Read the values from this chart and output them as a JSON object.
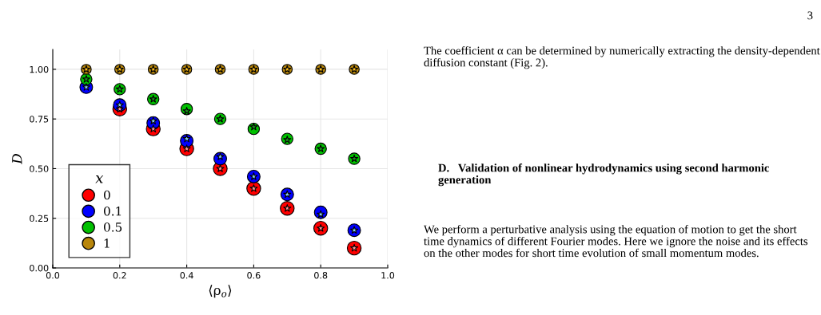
{
  "chart_data": {
    "type": "scatter",
    "xlabel": "⟨ρ$_{o}$⟩",
    "ylabel": "D",
    "legend_title": "x",
    "xlim": [
      0,
      1.0
    ],
    "ylim": [
      0,
      1.1
    ],
    "xticks": [
      {
        "value": 0,
        "label": "0.0"
      },
      0.2,
      0.4,
      0.6,
      0.8,
      {
        "value": 1.0,
        "label": "1.0"
      }
    ],
    "yticks": [
      {
        "value": 0,
        "label": "0.00"
      },
      0.25,
      {
        "value": 0.5,
        "label": "0.50"
      },
      0.75,
      {
        "value": 1.0,
        "label": "1.00"
      }
    ],
    "grid": true,
    "legend": "bottom left",
    "x": [
      0.1,
      0.2,
      0.3,
      0.4,
      0.5,
      0.6,
      0.7,
      0.8,
      0.9
    ],
    "series": [
      {
        "name": "0",
        "color": "#ff0000",
        "marker": "circle",
        "values": [
          null,
          0.8,
          0.7,
          0.6,
          0.5,
          0.4,
          0.3,
          0.2,
          0.1
        ]
      },
      {
        "name": "0.1",
        "color": "#0000ff",
        "marker": "circle",
        "values": [
          0.91,
          0.82,
          0.73,
          0.64,
          0.55,
          0.46,
          0.37,
          0.28,
          0.19
        ]
      },
      {
        "name": "0.5",
        "color": "#00c000",
        "marker": "circle",
        "values": [
          0.95,
          0.9,
          0.85,
          0.8,
          0.75,
          0.7,
          0.65,
          0.6,
          0.55
        ]
      },
      {
        "name": "1",
        "color": "#b8860b",
        "marker": "circle",
        "values": [
          1.0,
          1.0,
          1.0,
          1.0,
          1.0,
          1.0,
          1.0,
          1.0,
          1.0
        ]
      },
      {
        "color": "#ff9999",
        "marker": "star",
        "values": [
          null,
          0.8,
          0.7,
          0.6,
          0.5,
          0.4,
          0.3,
          0.2,
          0.1
        ]
      },
      {
        "color": "#87ceeb",
        "marker": "star",
        "values": [
          0.91,
          0.82,
          0.74,
          0.65,
          0.56,
          0.46,
          0.37,
          0.27,
          0.19
        ]
      },
      {
        "color": "#228b22",
        "marker": "star",
        "values": [
          0.95,
          0.9,
          0.85,
          0.79,
          0.75,
          0.71,
          0.645,
          0.6,
          0.55
        ]
      },
      {
        "color": "#ffc020",
        "marker": "star",
        "values": [
          1.0,
          1.0,
          1.0,
          1.0,
          1.0,
          1.0,
          1.0,
          1.0,
          1.0
        ]
      }
    ],
    "annotations": [
      "3",
      "The coefficient α can be determined by numerically extracting the density-dependent diffusion constant (Fig. 2).",
      "D.   Validation of nonlinear hydrodynamics using second harmonic generation",
      "We perform a perturbative analysis using the equation of motion to get the short time dynamics of different Fourier modes. Here we ignore the noise and its effects on the other modes for short time evolution of small momentum modes."
    ]
  }
}
